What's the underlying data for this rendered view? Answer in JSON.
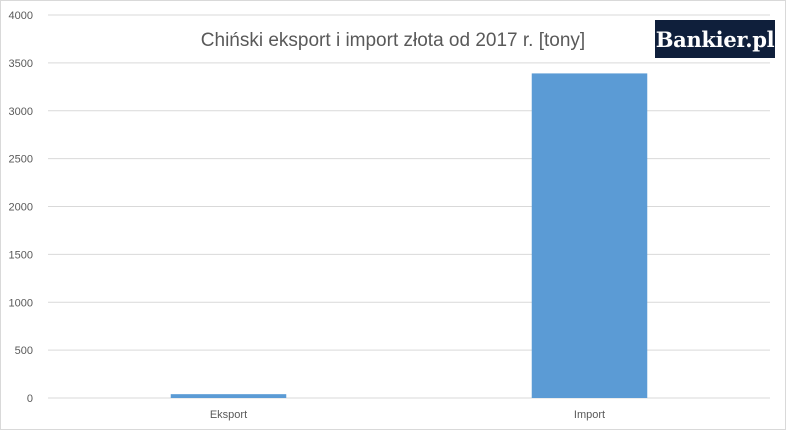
{
  "colors": {
    "bar": "#5b9bd5",
    "grid": "#d9d9d9",
    "axis_text": "#595959",
    "title_text": "#595959",
    "logo_bg": "#0f1f3b",
    "logo_accent": "#e2231a"
  },
  "logo": {
    "text": "Bankier.pl"
  },
  "chart_data": {
    "type": "bar",
    "title": "Chiński eksport i import złota od 2017 r. [tony]",
    "xlabel": "",
    "ylabel": "",
    "categories": [
      "Eksport",
      "Import"
    ],
    "values": [
      40,
      3390
    ],
    "ylim": [
      0,
      4000
    ],
    "yticks": [
      0,
      500,
      1000,
      1500,
      2000,
      2500,
      3000,
      3500,
      4000
    ],
    "grid": true,
    "legend": "none"
  }
}
